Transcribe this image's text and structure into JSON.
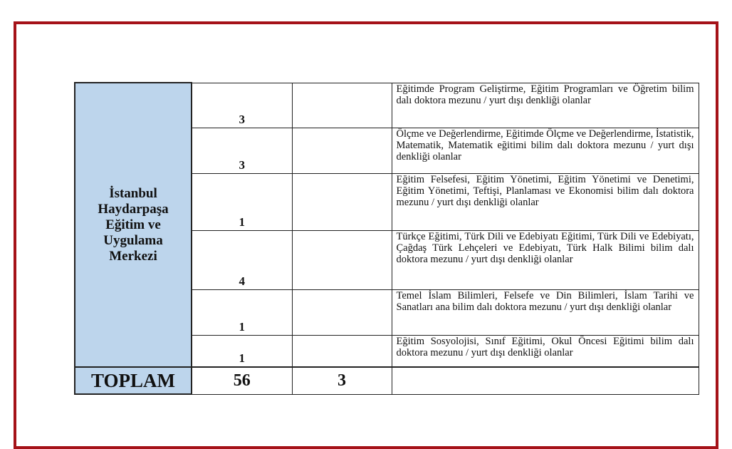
{
  "frame_color": "#a51218",
  "unit_fill_color": "#bdd5ec",
  "unit_name": "İstanbul Haydarpaşa Eğitim ve Uygulama Merkezi",
  "rows": [
    {
      "count": "3",
      "extra": "",
      "description": "Eğitimde Program Geliştirme, Eğitim Programları ve Öğretim bilim dalı doktora mezunu / yurt dışı denkliği olanlar"
    },
    {
      "count": "3",
      "extra": "",
      "description": "Ölçme ve Değerlendirme, Eğitimde Ölçme ve Değerlendirme, İstatistik, Matematik, Matematik eğitimi bilim dalı doktora mezunu / yurt dışı denkliği olanlar"
    },
    {
      "count": "1",
      "extra": "",
      "description": "Eğitim Felsefesi, Eğitim Yönetimi, Eğitim Yönetimi ve Denetimi, Eğitim Yönetimi, Teftişi, Planlaması ve Ekonomisi bilim dalı doktora mezunu / yurt dışı denkliği olanlar"
    },
    {
      "count": "4",
      "extra": "",
      "description": "Türkçe Eğitimi, Türk Dili ve Edebiyatı Eğitimi, Türk Dili ve Edebiyatı, Çağdaş Türk Lehçeleri ve Edebiyatı, Türk Halk Bilimi bilim dalı doktora mezunu / yurt dışı denkliği olanlar"
    },
    {
      "count": "1",
      "extra": "",
      "description": "Temel İslam Bilimleri, Felsefe ve Din Bilimleri, İslam Tarihi ve Sanatları ana bilim dalı doktora mezunu / yurt dışı denkliği olanlar"
    },
    {
      "count": "1",
      "extra": "",
      "description": "Eğitim Sosyolojisi, Sınıf Eğitimi, Okul Öncesi Eğitimi bilim dalı doktora mezunu / yurt dışı denkliği olanlar"
    }
  ],
  "total": {
    "label": "TOPLAM",
    "count": "56",
    "extra": "3",
    "description": ""
  }
}
